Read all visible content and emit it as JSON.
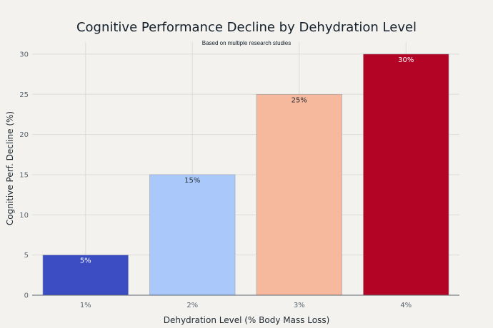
{
  "chart_data": {
    "type": "bar",
    "title": "Cognitive Performance Decline by Dehydration Level",
    "subtitle": "Based on multiple research studies",
    "xlabel": "Dehydration Level (% Body Mass Loss)",
    "ylabel": "Cognitive Perf. Decline (%)",
    "categories": [
      "1%",
      "2%",
      "3%",
      "4%"
    ],
    "values": [
      5,
      15,
      25,
      30
    ],
    "data_labels": [
      "5%",
      "15%",
      "25%",
      "30%"
    ],
    "bar_colors": [
      "#3c4dc4",
      "#abc8fb",
      "#f6b99d",
      "#b40426"
    ],
    "label_colors": [
      "#ffffff",
      "#1f2a33",
      "#1f2a33",
      "#ffffff"
    ],
    "ylim": [
      0,
      31.5
    ],
    "yticks": [
      0,
      5,
      10,
      15,
      20,
      25,
      30
    ],
    "grid": true,
    "legend": "none"
  }
}
